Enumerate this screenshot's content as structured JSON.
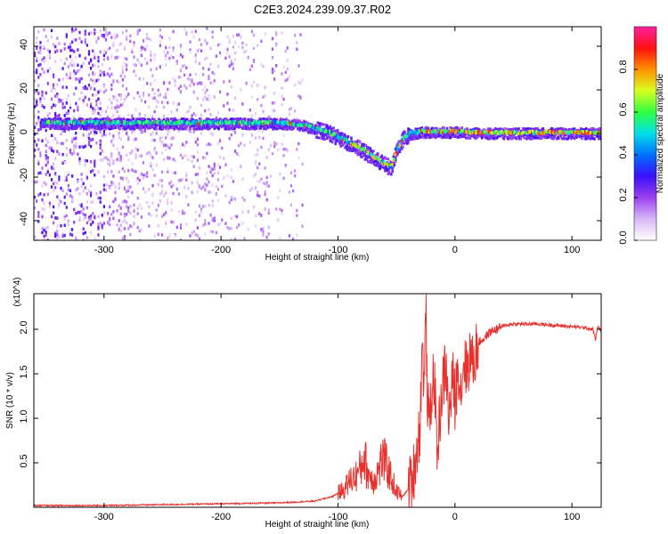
{
  "title": "C2E3.2024.239.09.37.R02",
  "colors": {
    "snr_line": "#e8302c",
    "axis": "#000000",
    "background": "#ffffff"
  },
  "chart_data": [
    {
      "type": "heatmap",
      "xlabel": "Height of straight line (km)",
      "ylabel": "Frequency (Hz)",
      "xlim": [
        -360,
        125
      ],
      "ylim": [
        -49,
        49
      ],
      "xticks": [
        "-300",
        "-200",
        "-100",
        "0",
        "100"
      ],
      "xtick_values": [
        -300,
        -200,
        -100,
        0,
        100
      ],
      "yticks": [
        "40",
        "20",
        "0",
        "-20",
        "-40"
      ],
      "ytick_values": [
        40,
        20,
        0,
        -20,
        -40
      ],
      "colorbar": {
        "label": "Normalized spectral amplitude",
        "range": [
          0,
          1
        ],
        "ticks": [
          "0.0",
          "0.2",
          "0.4",
          "0.6",
          "0.8"
        ],
        "tick_values": [
          0,
          0.2,
          0.4,
          0.6,
          0.8
        ],
        "colormap": [
          "#ffffff",
          "#d8b8f8",
          "#9a40f0",
          "#3a10f8",
          "#0070ff",
          "#00e0e8",
          "#30ff40",
          "#d8ff20",
          "#ff9000",
          "#ff1010",
          "#ff20a0"
        ]
      },
      "ridge": {
        "x": [
          -355,
          -300,
          -250,
          -200,
          -150,
          -130,
          -110,
          -95,
          -80,
          -70,
          -60,
          -55,
          -50,
          -45,
          -40,
          -30,
          -20,
          -10,
          0,
          20,
          50,
          100,
          125
        ],
        "frequency": [
          5,
          5,
          5,
          5,
          5,
          4,
          1,
          -3,
          -7,
          -11,
          -14,
          -15,
          -7,
          -2,
          0,
          1,
          1,
          1,
          1,
          0.5,
          0.5,
          0.5,
          0.5
        ]
      }
    },
    {
      "type": "line",
      "xlabel": "Height of straight line (km)",
      "ylabel": "SNR (10 * v/v)",
      "multiplier": "(x10^4)",
      "xlim": [
        -360,
        125
      ],
      "ylim": [
        0,
        2.4
      ],
      "xticks": [
        "-300",
        "-200",
        "-100",
        "0",
        "100"
      ],
      "xtick_values": [
        -300,
        -200,
        -100,
        0,
        100
      ],
      "yticks": [
        "0.5",
        "1.0",
        "1.5",
        "2.0"
      ],
      "ytick_values": [
        0.5,
        1.0,
        1.5,
        2.0
      ],
      "series": [
        {
          "x": [
            -360,
            -300,
            -250,
            -200,
            -150,
            -120,
            -105,
            -95,
            -90,
            -85,
            -80,
            -78,
            -75,
            -70,
            -65,
            -62,
            -58,
            -55,
            -50,
            -45,
            -40,
            -36,
            -33,
            -30,
            -28,
            -26,
            -25,
            -24,
            -22,
            -20,
            -18,
            -15,
            -12,
            -8,
            -5,
            -2,
            0,
            3,
            5,
            8,
            10,
            13,
            15,
            20,
            25,
            30,
            35,
            40,
            45,
            50,
            60,
            70,
            80,
            90,
            100,
            110,
            118,
            120,
            122,
            125
          ],
          "values": [
            0.02,
            0.02,
            0.03,
            0.04,
            0.05,
            0.07,
            0.12,
            0.2,
            0.3,
            0.35,
            0.45,
            0.6,
            0.4,
            0.3,
            0.42,
            0.55,
            0.45,
            0.35,
            0.18,
            0.12,
            0.2,
            0.35,
            0.6,
            0.9,
            1.8,
            1.3,
            2.4,
            1.4,
            0.9,
            1.3,
            1.5,
            0.6,
            1.2,
            1.6,
            1.0,
            1.45,
            1.2,
            1.6,
            1.3,
            1.7,
            1.5,
            1.75,
            1.6,
            1.85,
            1.9,
            1.97,
            2.0,
            2.03,
            2.05,
            2.06,
            2.06,
            2.06,
            2.05,
            2.04,
            2.03,
            2.02,
            2.0,
            1.88,
            2.03,
            1.98
          ]
        }
      ]
    }
  ]
}
